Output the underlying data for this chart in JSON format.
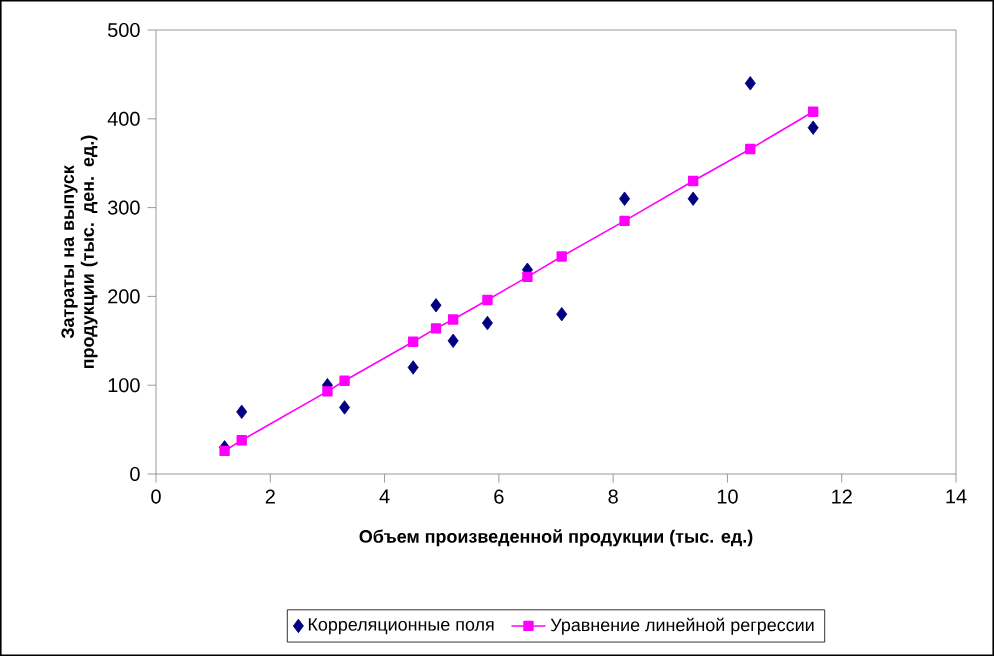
{
  "chart_data": {
    "type": "scatter",
    "xlabel": "Объем произведенной продукции (тыс. ед.)",
    "ylabel": "Затраты на выпуск продукции (тыс. ден. ед.)",
    "xlim": [
      0,
      14
    ],
    "xticks": [
      0,
      2,
      4,
      6,
      8,
      10,
      12,
      14
    ],
    "ylim": [
      0,
      500
    ],
    "yticks": [
      0,
      100,
      200,
      300,
      400,
      500
    ],
    "grid": false,
    "legend": "bottom",
    "series": [
      {
        "name": "Корреляционные поля",
        "marker": "diamond",
        "color": "#000080",
        "x": [
          1.2,
          1.5,
          3.0,
          3.3,
          4.5,
          4.9,
          5.2,
          5.8,
          6.5,
          7.1,
          8.2,
          9.4,
          10.4,
          11.5
        ],
        "values": [
          30,
          70,
          100,
          75,
          120,
          190,
          150,
          170,
          230,
          180,
          310,
          310,
          440,
          390
        ]
      },
      {
        "name": "Уравнение линейной регрессии",
        "type": "line",
        "marker": "square",
        "color": "#ff00ff",
        "x": [
          1.2,
          1.5,
          3.0,
          3.3,
          4.5,
          4.9,
          5.2,
          5.8,
          6.5,
          7.1,
          8.2,
          9.4,
          10.4,
          11.5
        ],
        "values": [
          26,
          38,
          93,
          105,
          149,
          164,
          174,
          196,
          222,
          245,
          285,
          330,
          366,
          408
        ]
      }
    ]
  }
}
